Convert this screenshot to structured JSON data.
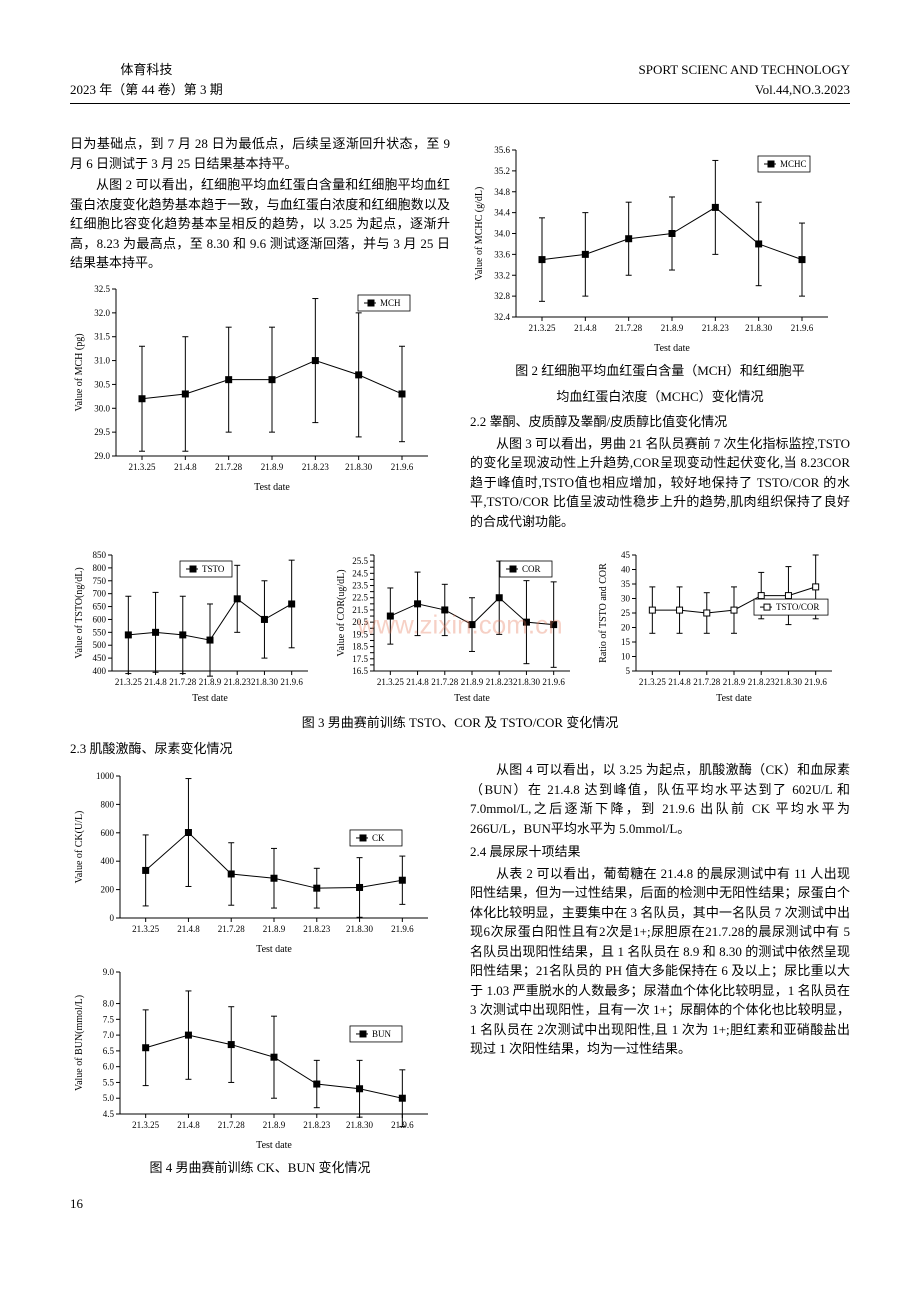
{
  "header": {
    "left_title": "体育科技",
    "left_issue": "2023 年（第 44 卷）第 3 期",
    "right_title": "SPORT SCIENC AND TECHNOLOGY",
    "right_issue": "Vol.44,NO.3.2023"
  },
  "para1": "日为基础点，到 7 月 28 日为最低点，后续呈逐渐回升状态，至 9 月 6 日测试于 3 月 25 日结果基本持平。",
  "para2": "从图 2 可以看出，红细胞平均血红蛋白含量和红细胞平均血红蛋白浓度变化趋势基本趋于一致，与血红蛋白浓度和红细胞数以及红细胞比容变化趋势基本呈相反的趋势，以 3.25 为起点，逐渐升高，8.23 为最高点，至 8.30 和 9.6 测试逐渐回落，并与 3 月 25 日结果基本持平。",
  "fig2_caption1": "图 2 红细胞平均血红蛋白含量（MCH）和红细胞平",
  "fig2_caption2": "均血红蛋白浓度（MCHC）变化情况",
  "sec22_title": "2.2 睾酮、皮质醇及睾酮/皮质醇比值变化情况",
  "sec22_para": "从图 3 可以看出，男曲 21 名队员赛前 7 次生化指标监控,TSTO 的变化呈现波动性上升趋势,COR呈现变动性起伏变化,当 8.23COR 趋于峰值时,TSTO值也相应增加，较好地保持了 TSTO/COR 的水平,TSTO/COR 比值呈波动性稳步上升的趋势,肌肉组织保持了良好的合成代谢功能。",
  "fig3_caption": "图 3 男曲赛前训练 TSTO、COR 及 TSTO/COR 变化情况",
  "sec23_title": "2.3 肌酸激酶、尿素变化情况",
  "sec23_para": "从图 4 可以看出，以 3.25 为起点，肌酸激酶（CK）和血尿素（BUN）在 21.4.8 达到峰值，队伍平均水平达到了 602U/L 和 7.0mmol/L,之后逐渐下降，到 21.9.6 出队前 CK 平均水平为 266U/L，BUN平均水平为 5.0mmol/L。",
  "sec24_title": "2.4 晨尿尿十项结果",
  "sec24_para": "从表 2 可以看出，葡萄糖在 21.4.8 的晨尿测试中有 11 人出现阳性结果，但为一过性结果，后面的检测中无阳性结果；尿蛋白个体化比较明显，主要集中在 3 名队员，其中一名队员 7 次测试中出现6次尿蛋白阳性且有2次是1+;尿胆原在21.7.28的晨尿测试中有 5 名队员出现阳性结果，且 1 名队员在 8.9 和 8.30 的测试中依然呈现阳性结果；21名队员的 PH 值大多能保持在 6 及以上；尿比重以大于 1.03 严重脱水的人数最多；尿潜血个体化比较明显，1 名队员在 3 次测试中出现阳性，且有一次 1+；尿酮体的个体化也比较明显，1 名队员在 2次测试中出现阳性,且 1 次为 1+;胆红素和亚硝酸盐出现过 1 次阳性结果，均为一过性结果。",
  "fig4_caption": "图 4 男曲赛前训练 CK、BUN 变化情况",
  "page_number": "16",
  "watermark": "www.zixin.com.cn",
  "x_dates": [
    "21.3.25",
    "21.4.8",
    "21.7.28",
    "21.8.9",
    "21.8.23",
    "21.8.30",
    "21.9.6"
  ],
  "x_axis_label": "Test date",
  "chart_style": {
    "line_color": "#000000",
    "marker_fill": "#000000",
    "marker_size": 3.5,
    "error_bar_cap": 3,
    "grid": false,
    "background": "#ffffff",
    "axis_color": "#000000",
    "tick_font_size": 9,
    "label_font_size": 10,
    "legend_border": "#000000"
  },
  "mch_chart": {
    "type": "line-errorbar",
    "ylabel": "Value of MCH (pg)",
    "ylim": [
      29.0,
      32.5
    ],
    "ytick_step": 0.5,
    "yticks": [
      "29.0",
      "29.5",
      "30.0",
      "30.5",
      "31.0",
      "31.5",
      "32.0",
      "32.5"
    ],
    "values": [
      30.2,
      30.3,
      30.6,
      30.6,
      31.0,
      30.7,
      30.3
    ],
    "err": [
      1.1,
      1.2,
      1.1,
      1.1,
      1.3,
      1.3,
      1.0
    ],
    "legend": "MCH",
    "legend_pos": "top-right"
  },
  "mchc_chart": {
    "type": "line-errorbar",
    "ylabel": "Value of MCHC (g/dL)",
    "ylim": [
      32.4,
      35.6
    ],
    "ytick_step": 0.4,
    "yticks": [
      "32.4",
      "32.8",
      "33.2",
      "33.6",
      "34.0",
      "34.4",
      "34.8",
      "35.2",
      "35.6"
    ],
    "values": [
      33.5,
      33.6,
      33.9,
      34.0,
      34.5,
      33.8,
      33.5
    ],
    "err": [
      0.8,
      0.8,
      0.7,
      0.7,
      0.9,
      0.8,
      0.7
    ],
    "legend": "MCHC",
    "legend_pos": "top-right"
  },
  "tsto_chart": {
    "type": "line-errorbar",
    "ylabel": "Value of TSTO(ng/dL)",
    "ylim": [
      400,
      850
    ],
    "ytick_step": 50,
    "yticks": [
      "400",
      "450",
      "500",
      "550",
      "600",
      "650",
      "700",
      "750",
      "800",
      "850"
    ],
    "values": [
      540,
      550,
      540,
      520,
      680,
      600,
      660
    ],
    "err": [
      150,
      155,
      150,
      140,
      130,
      150,
      170
    ],
    "legend": "TSTO",
    "legend_pos": "top-center"
  },
  "cor_chart": {
    "type": "line-errorbar",
    "ylabel": "Value of COR(ug/dL)",
    "ylim": [
      16.5,
      26.0
    ],
    "ytick_step": 0.5,
    "yticks": [
      "16.5",
      "17.0",
      "17.5",
      "18.0",
      "18.5",
      "19.0",
      "19.5",
      "20.0",
      "20.5",
      "21.0",
      "21.5",
      "22.0",
      "22.5",
      "23.0",
      "23.5",
      "24.0",
      "24.5",
      "25.0",
      "25.5",
      "26.0"
    ],
    "values": [
      21.0,
      22.0,
      21.5,
      20.3,
      22.5,
      20.5,
      20.3
    ],
    "err": [
      2.3,
      2.6,
      2.1,
      2.2,
      3.0,
      3.4,
      3.5
    ],
    "legend": "COR",
    "legend_pos": "top-right"
  },
  "ratio_chart": {
    "type": "line-errorbar",
    "ylabel": "Ratio of TSTO and COR",
    "ylim": [
      5,
      45
    ],
    "ytick_step": 5,
    "yticks": [
      "5",
      "10",
      "15",
      "20",
      "25",
      "30",
      "35",
      "40",
      "45"
    ],
    "values": [
      26,
      26,
      25,
      26,
      31,
      31,
      34
    ],
    "err": [
      8,
      8,
      7,
      8,
      8,
      10,
      11
    ],
    "legend": "TSTO/COR",
    "legend_pos": "right",
    "marker_fill": "#ffffff"
  },
  "ck_chart": {
    "type": "line-errorbar",
    "ylabel": "Value of CK(U/L)",
    "ylim": [
      0,
      1000
    ],
    "ytick_step": 200,
    "yticks": [
      "0",
      "200",
      "400",
      "600",
      "800",
      "1000"
    ],
    "values": [
      335,
      602,
      310,
      280,
      210,
      215,
      266
    ],
    "err": [
      250,
      380,
      220,
      210,
      140,
      210,
      170
    ],
    "legend": "CK",
    "legend_pos": "right",
    "allow_below_zero": true
  },
  "bun_chart": {
    "type": "line-errorbar",
    "ylabel": "Value of BUN(mmol/L)",
    "ylim": [
      4.5,
      9.0
    ],
    "ytick_step": 0.5,
    "yticks": [
      "4.5",
      "5.0",
      "5.5",
      "6.0",
      "6.5",
      "7.0",
      "7.5",
      "8.0",
      "9.0"
    ],
    "values": [
      6.6,
      7.0,
      6.7,
      6.3,
      5.45,
      5.3,
      5.0
    ],
    "err": [
      1.2,
      1.4,
      1.2,
      1.3,
      0.75,
      0.9,
      0.9
    ],
    "legend": "BUN",
    "legend_pos": "right"
  }
}
